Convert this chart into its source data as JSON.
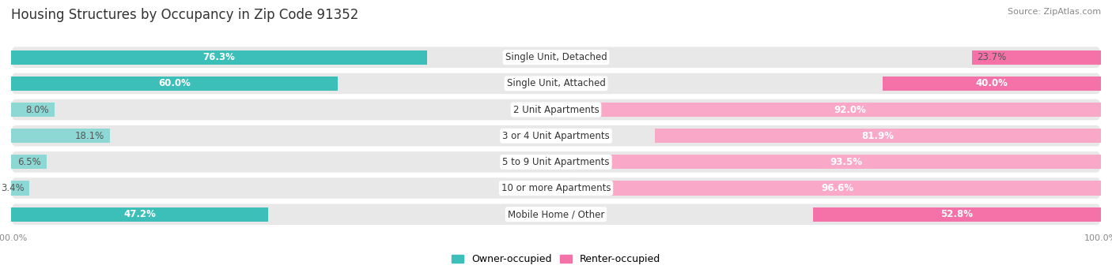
{
  "title": "Housing Structures by Occupancy in Zip Code 91352",
  "source": "Source: ZipAtlas.com",
  "categories": [
    "Single Unit, Detached",
    "Single Unit, Attached",
    "2 Unit Apartments",
    "3 or 4 Unit Apartments",
    "5 to 9 Unit Apartments",
    "10 or more Apartments",
    "Mobile Home / Other"
  ],
  "owner_pct": [
    76.3,
    60.0,
    8.0,
    18.1,
    6.5,
    3.4,
    47.2
  ],
  "renter_pct": [
    23.7,
    40.0,
    92.0,
    81.9,
    93.5,
    96.6,
    52.8
  ],
  "owner_color_strong": "#3BBFB8",
  "owner_color_light": "#8DD8D4",
  "renter_color_strong": "#F472A8",
  "renter_color_light": "#F9A8C8",
  "row_bg_color": "#E8E8E8",
  "background_color": "#FFFFFF",
  "title_fontsize": 12,
  "label_fontsize": 8.5,
  "bar_label_fontsize": 8.5,
  "tick_fontsize": 8,
  "legend_fontsize": 9,
  "source_fontsize": 8,
  "strong_rows": [
    0,
    1,
    6
  ]
}
